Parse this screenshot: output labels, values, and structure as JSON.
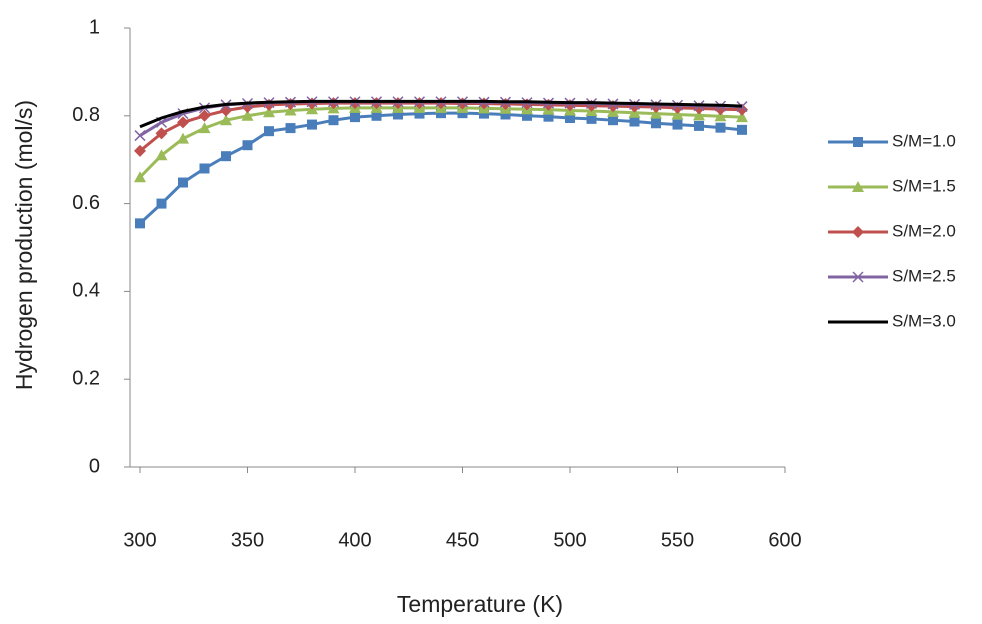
{
  "chart_data": {
    "type": "line",
    "x_label": "Temperature  (K)",
    "y_label": "Hydrogen production  (mol/s)",
    "x": [
      300,
      310,
      320,
      330,
      340,
      350,
      360,
      370,
      380,
      390,
      400,
      410,
      420,
      430,
      440,
      450,
      460,
      470,
      480,
      490,
      500,
      510,
      520,
      530,
      540,
      550,
      560,
      570,
      580
    ],
    "xlim": [
      300,
      600
    ],
    "xticks": [
      300,
      350,
      400,
      450,
      500,
      550,
      600
    ],
    "ylim": [
      0,
      1
    ],
    "yticks": [
      0,
      0.2,
      0.4,
      0.6,
      0.8,
      1
    ],
    "legend": "right",
    "series": [
      {
        "name": "S/M=1.0",
        "color": "#4a7ebb",
        "marker": "square",
        "values": [
          0.555,
          0.6,
          0.648,
          0.68,
          0.708,
          0.733,
          0.765,
          0.772,
          0.78,
          0.79,
          0.797,
          0.8,
          0.803,
          0.805,
          0.806,
          0.806,
          0.805,
          0.803,
          0.8,
          0.798,
          0.795,
          0.793,
          0.79,
          0.787,
          0.783,
          0.78,
          0.777,
          0.773,
          0.768
        ]
      },
      {
        "name": "S/M=1.5",
        "color": "#9bbb59",
        "marker": "triangle",
        "values": [
          0.66,
          0.71,
          0.748,
          0.772,
          0.79,
          0.8,
          0.808,
          0.812,
          0.815,
          0.817,
          0.818,
          0.818,
          0.818,
          0.818,
          0.818,
          0.818,
          0.817,
          0.816,
          0.815,
          0.814,
          0.812,
          0.811,
          0.809,
          0.807,
          0.805,
          0.803,
          0.801,
          0.799,
          0.797
        ]
      },
      {
        "name": "S/M=2.0",
        "color": "#c0504d",
        "marker": "diamond",
        "values": [
          0.72,
          0.76,
          0.785,
          0.8,
          0.812,
          0.82,
          0.825,
          0.827,
          0.828,
          0.829,
          0.829,
          0.829,
          0.829,
          0.829,
          0.829,
          0.828,
          0.828,
          0.827,
          0.826,
          0.825,
          0.824,
          0.823,
          0.822,
          0.821,
          0.82,
          0.818,
          0.817,
          0.815,
          0.814
        ]
      },
      {
        "name": "S/M=2.5",
        "color": "#8064a2",
        "marker": "x",
        "values": [
          0.755,
          0.785,
          0.805,
          0.818,
          0.825,
          0.828,
          0.83,
          0.831,
          0.832,
          0.832,
          0.832,
          0.832,
          0.832,
          0.832,
          0.832,
          0.832,
          0.831,
          0.831,
          0.83,
          0.829,
          0.829,
          0.828,
          0.827,
          0.826,
          0.825,
          0.824,
          0.823,
          0.822,
          0.821
        ]
      },
      {
        "name": "S/M=3.0",
        "color": "#000000",
        "marker": "none",
        "values": [
          0.775,
          0.795,
          0.81,
          0.82,
          0.826,
          0.829,
          0.831,
          0.832,
          0.833,
          0.833,
          0.833,
          0.833,
          0.833,
          0.833,
          0.833,
          0.833,
          0.833,
          0.832,
          0.832,
          0.831,
          0.83,
          0.83,
          0.829,
          0.828,
          0.827,
          0.826,
          0.825,
          0.824,
          0.822
        ]
      }
    ]
  }
}
